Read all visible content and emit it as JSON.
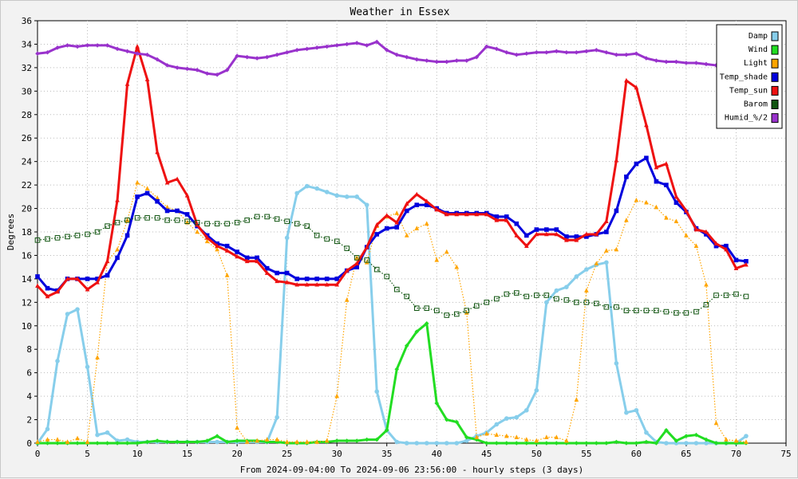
{
  "chart_data": {
    "type": "line",
    "title": "Weather in Essex",
    "xlabel": "From 2024-09-04:00 To 2024-09-06 23:56:00 - hourly steps (3 days)",
    "ylabel": "Degrees",
    "xlim": [
      0,
      75
    ],
    "ylim": [
      0,
      36
    ],
    "xticks": [
      0,
      5,
      10,
      15,
      20,
      25,
      30,
      35,
      40,
      45,
      50,
      55,
      60,
      65,
      70,
      75
    ],
    "yticks": [
      0,
      2,
      4,
      6,
      8,
      10,
      12,
      14,
      16,
      18,
      20,
      22,
      24,
      26,
      28,
      30,
      32,
      34,
      36
    ],
    "grid": true,
    "legend_position": "top-right",
    "series": [
      {
        "name": "Damp",
        "color": "#87ceeb",
        "style": "solid",
        "marker": "circle",
        "values": [
          0,
          1.2,
          7,
          11,
          11.4,
          6.5,
          0.7,
          0.9,
          0.2,
          0.3,
          0.1,
          0.1,
          0.1,
          0.1,
          0.1,
          0.1,
          0.1,
          0.1,
          0.1,
          0.1,
          0.1,
          0.1,
          0.1,
          0.1,
          2.2,
          17.5,
          21.3,
          21.9,
          21.7,
          21.4,
          21.1,
          21,
          21,
          20.3,
          4.4,
          1.1,
          0.1,
          0,
          0,
          0,
          0,
          0,
          0,
          0.2,
          0.6,
          0.9,
          1.6,
          2.1,
          2.2,
          2.8,
          4.5,
          12,
          13,
          13.3,
          14.2,
          14.8,
          15.2,
          15.4,
          6.8,
          2.6,
          2.8,
          0.9,
          0.1,
          0,
          0,
          0,
          0,
          0,
          0,
          0,
          0,
          0.6
        ]
      },
      {
        "name": "Wind",
        "color": "#22dd22",
        "style": "solid",
        "marker": "diamond",
        "values": [
          0,
          0,
          0,
          0,
          0,
          0,
          0,
          0,
          0,
          0,
          0,
          0.1,
          0.2,
          0.1,
          0.1,
          0.1,
          0.1,
          0.2,
          0.6,
          0.1,
          0.2,
          0.2,
          0.2,
          0.1,
          0.1,
          0,
          0,
          0,
          0.1,
          0.1,
          0.2,
          0.2,
          0.2,
          0.3,
          0.3,
          1.1,
          6.3,
          8.3,
          9.5,
          10.2,
          3.4,
          2,
          1.8,
          0.5,
          0.3,
          0,
          0,
          0,
          0,
          0,
          0,
          0,
          0,
          0,
          0,
          0,
          0,
          0,
          0.1,
          0,
          0,
          0.1,
          0,
          1.1,
          0.2,
          0.6,
          0.7,
          0.3,
          0,
          0,
          0,
          0
        ]
      },
      {
        "name": "Light",
        "color": "#ffa500",
        "style": "dotted",
        "marker": "triangle",
        "values": [
          0.1,
          0.3,
          0.3,
          0.1,
          0.4,
          0.1,
          7.3,
          15.5,
          16.5,
          19,
          22.2,
          21.7,
          20.9,
          20.1,
          19.8,
          18.8,
          18,
          17.2,
          16.5,
          14.3,
          1.3,
          0.1,
          0.2,
          0.3,
          0.3,
          0.1,
          0.1,
          0.1,
          0.1,
          0.2,
          4,
          12.2,
          15.8,
          15.4,
          18.5,
          19.3,
          19.6,
          17.7,
          18.3,
          18.7,
          15.6,
          16.3,
          15,
          11.1,
          0.5,
          0.8,
          0.7,
          0.6,
          0.5,
          0.3,
          0.2,
          0.5,
          0.5,
          0.2,
          3.7,
          13,
          15.3,
          16.4,
          16.5,
          19,
          20.7,
          20.5,
          20.1,
          19.2,
          18.9,
          17.7,
          16.8,
          13.5,
          1.7,
          0.3,
          0.2,
          0.1
        ]
      },
      {
        "name": "Temp_shade",
        "color": "#0000dd",
        "style": "solid",
        "marker": "square",
        "values": [
          14.2,
          13.2,
          13,
          14,
          14,
          14,
          14,
          14.3,
          15.8,
          17.7,
          21,
          21.3,
          20.6,
          19.8,
          19.8,
          19.5,
          18.5,
          17.7,
          17,
          16.8,
          16.3,
          15.8,
          15.8,
          14.9,
          14.5,
          14.5,
          14,
          14,
          14,
          14,
          14,
          14.7,
          15,
          16.7,
          17.8,
          18.3,
          18.4,
          19.8,
          20.3,
          20.3,
          20,
          19.6,
          19.6,
          19.6,
          19.6,
          19.6,
          19.3,
          19.3,
          18.7,
          17.7,
          18.2,
          18.2,
          18.2,
          17.6,
          17.6,
          17.6,
          17.8,
          18,
          19.8,
          22.7,
          23.8,
          24.3,
          22.3,
          22,
          20.5,
          19.7,
          18.3,
          17.8,
          16.8,
          16.8,
          15.6,
          15.5
        ]
      },
      {
        "name": "Temp_sun",
        "color": "#ee1111",
        "style": "solid",
        "marker": "triangle",
        "values": [
          13.4,
          12.5,
          12.9,
          14,
          14,
          13.1,
          13.7,
          15.5,
          20.7,
          30.6,
          33.8,
          31,
          24.8,
          22.2,
          22.5,
          21.1,
          18.6,
          17.5,
          16.8,
          16.4,
          15.9,
          15.5,
          15.5,
          14.5,
          13.8,
          13.7,
          13.5,
          13.5,
          13.5,
          13.5,
          13.5,
          14.7,
          15.3,
          16.7,
          18.6,
          19.4,
          18.8,
          20.4,
          21.2,
          20.6,
          19.9,
          19.5,
          19.5,
          19.5,
          19.5,
          19.5,
          19,
          19,
          17.7,
          16.8,
          17.8,
          17.8,
          17.8,
          17.3,
          17.3,
          17.8,
          17.8,
          18.9,
          24.1,
          30.9,
          30.3,
          27.1,
          23.5,
          23.8,
          21,
          19.8,
          18.2,
          18,
          17,
          16.5,
          14.9,
          15.2
        ]
      },
      {
        "name": "Barom",
        "color": "#115511",
        "style": "dotted",
        "marker": "square-open",
        "values": [
          17.3,
          17.4,
          17.5,
          17.6,
          17.7,
          17.8,
          18,
          18.5,
          18.8,
          19,
          19.2,
          19.2,
          19.2,
          19,
          19,
          18.9,
          18.8,
          18.7,
          18.7,
          18.7,
          18.8,
          19,
          19.3,
          19.3,
          19.1,
          18.9,
          18.7,
          18.5,
          17.7,
          17.4,
          17.2,
          16.6,
          15.8,
          15.6,
          14.8,
          14.2,
          13.1,
          12.5,
          11.5,
          11.5,
          11.3,
          10.9,
          11,
          11.3,
          11.7,
          12,
          12.3,
          12.7,
          12.8,
          12.5,
          12.6,
          12.6,
          12.3,
          12.2,
          12,
          12,
          11.9,
          11.6,
          11.6,
          11.3,
          11.3,
          11.3,
          11.3,
          11.2,
          11.1,
          11.1,
          11.2,
          11.8,
          12.6,
          12.6,
          12.7,
          12.5
        ]
      },
      {
        "name": "Humid_%/2",
        "color": "#9932cc",
        "style": "solid",
        "marker": "diamond",
        "values": [
          33.2,
          33.3,
          33.7,
          33.9,
          33.8,
          33.9,
          33.9,
          33.9,
          33.6,
          33.4,
          33.2,
          33.1,
          32.7,
          32.2,
          32,
          31.9,
          31.8,
          31.5,
          31.4,
          31.8,
          33,
          32.9,
          32.8,
          32.9,
          33.1,
          33.3,
          33.5,
          33.6,
          33.7,
          33.8,
          33.9,
          34,
          34.1,
          33.9,
          34.2,
          33.5,
          33.1,
          32.9,
          32.7,
          32.6,
          32.5,
          32.5,
          32.6,
          32.6,
          32.9,
          33.8,
          33.6,
          33.3,
          33.1,
          33.2,
          33.3,
          33.3,
          33.4,
          33.3,
          33.3,
          33.4,
          33.5,
          33.3,
          33.1,
          33.1,
          33.2,
          32.8,
          32.6,
          32.5,
          32.5,
          32.4,
          32.4,
          32.3,
          32.2,
          32.2,
          32.1,
          32.1
        ]
      }
    ]
  }
}
